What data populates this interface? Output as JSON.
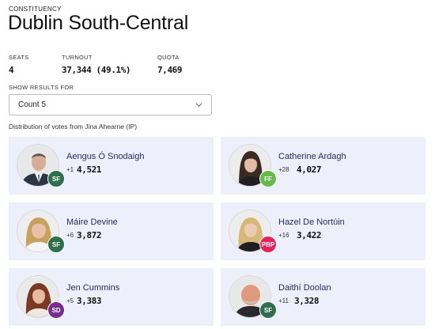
{
  "header": {
    "eyebrow": "CONSTITUENCY",
    "title": "Dublin South-Central"
  },
  "stats": {
    "seats_label": "SEATS",
    "seats_value": "4",
    "turnout_label": "TURNOUT",
    "turnout_value": "37,344 (49.1%)",
    "quota_label": "QUOTA",
    "quota_value": "7,469"
  },
  "results_selector": {
    "label": "SHOW RESULTS FOR",
    "selected": "Count 5"
  },
  "distribution_note": "Distribution of votes from Jina Ahearne (IP)",
  "candidates": [
    {
      "name": "Aengus Ó Snodaigh",
      "delta": "+1",
      "votes": "4,521",
      "party": "SF",
      "party_color": "#2f6f4d"
    },
    {
      "name": "Catherine Ardagh",
      "delta": "+28",
      "votes": "4,027",
      "party": "FF",
      "party_color": "#66bb4a"
    },
    {
      "name": "Máire Devine",
      "delta": "+6",
      "votes": "3,872",
      "party": "SF",
      "party_color": "#2f6f4d"
    },
    {
      "name": "Hazel De Nortúin",
      "delta": "+16",
      "votes": "3,422",
      "party": "PBP",
      "party_color": "#e0245e"
    },
    {
      "name": "Jen Cummins",
      "delta": "+5",
      "votes": "3,383",
      "party": "SD",
      "party_color": "#752f8a"
    },
    {
      "name": "Daithí Doolan",
      "delta": "+11",
      "votes": "3,328",
      "party": "SF",
      "party_color": "#2f6f4d"
    }
  ]
}
